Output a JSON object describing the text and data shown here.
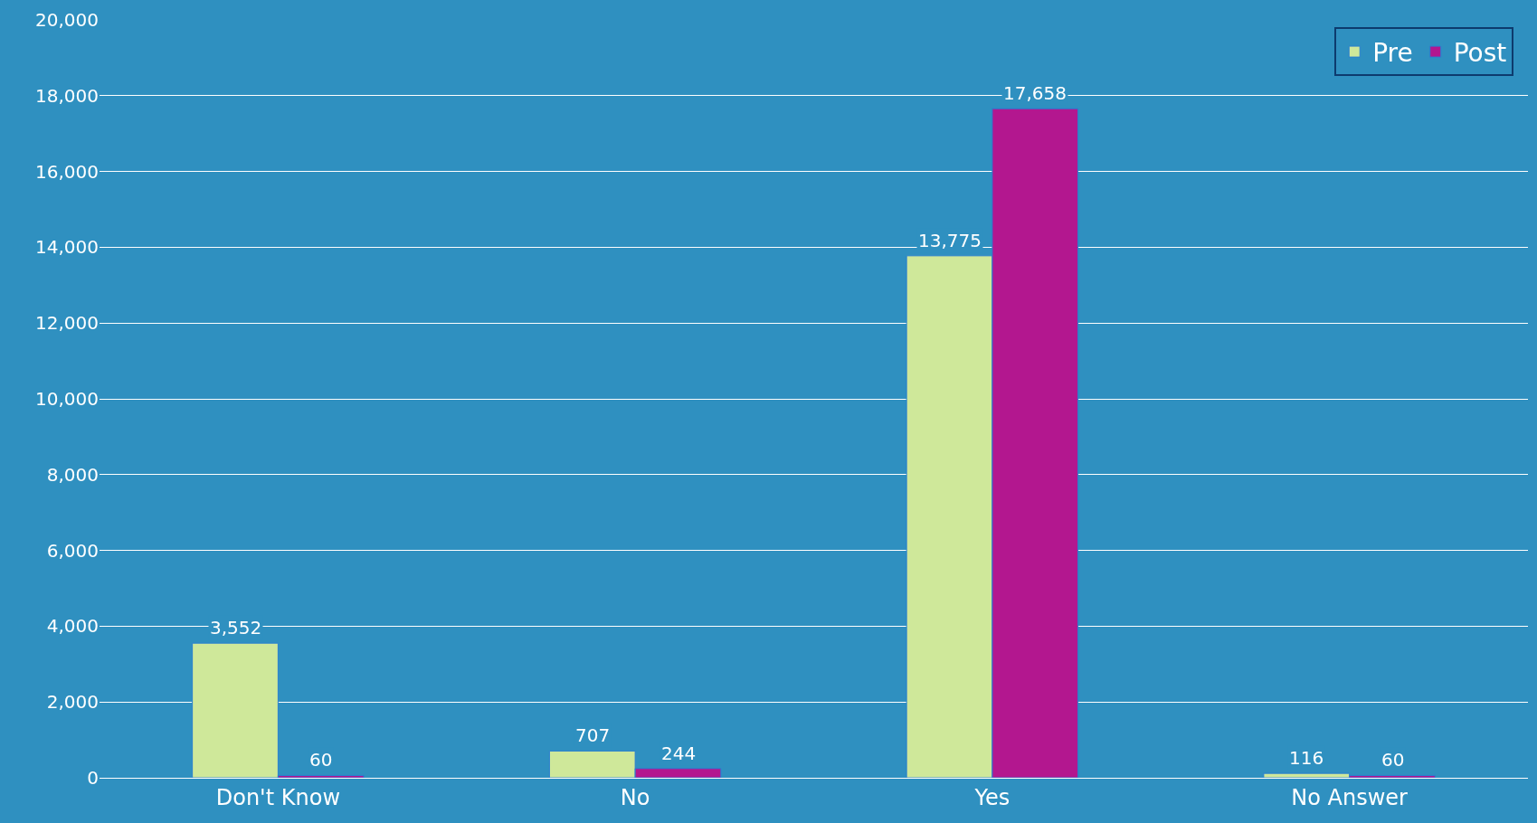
{
  "chart_data": {
    "type": "bar",
    "categories": [
      "Don't Know",
      "No",
      "Yes",
      "No Answer"
    ],
    "series": [
      {
        "name": "Pre",
        "color": "#cfe89a",
        "values": [
          3552,
          707,
          13775,
          116
        ],
        "value_labels": [
          "3,552",
          "707",
          "13,775",
          "116"
        ]
      },
      {
        "name": "Post",
        "color": "#b3178f",
        "values": [
          60,
          244,
          17658,
          60
        ],
        "value_labels": [
          "60",
          "244",
          "17,658",
          "60"
        ]
      }
    ],
    "ylim": [
      0,
      20000
    ],
    "yticks": [
      {
        "value": 0,
        "label": "0"
      },
      {
        "value": 2000,
        "label": "2,000"
      },
      {
        "value": 4000,
        "label": "4,000"
      },
      {
        "value": 6000,
        "label": "6,000"
      },
      {
        "value": 8000,
        "label": "8,000"
      },
      {
        "value": 10000,
        "label": "10,000"
      },
      {
        "value": 12000,
        "label": "12,000"
      },
      {
        "value": 14000,
        "label": "14,000"
      },
      {
        "value": 16000,
        "label": "16,000"
      },
      {
        "value": 18000,
        "label": "18,000"
      },
      {
        "value": 20000,
        "label": "20,000"
      }
    ],
    "grid": "y",
    "legend": "top right"
  }
}
